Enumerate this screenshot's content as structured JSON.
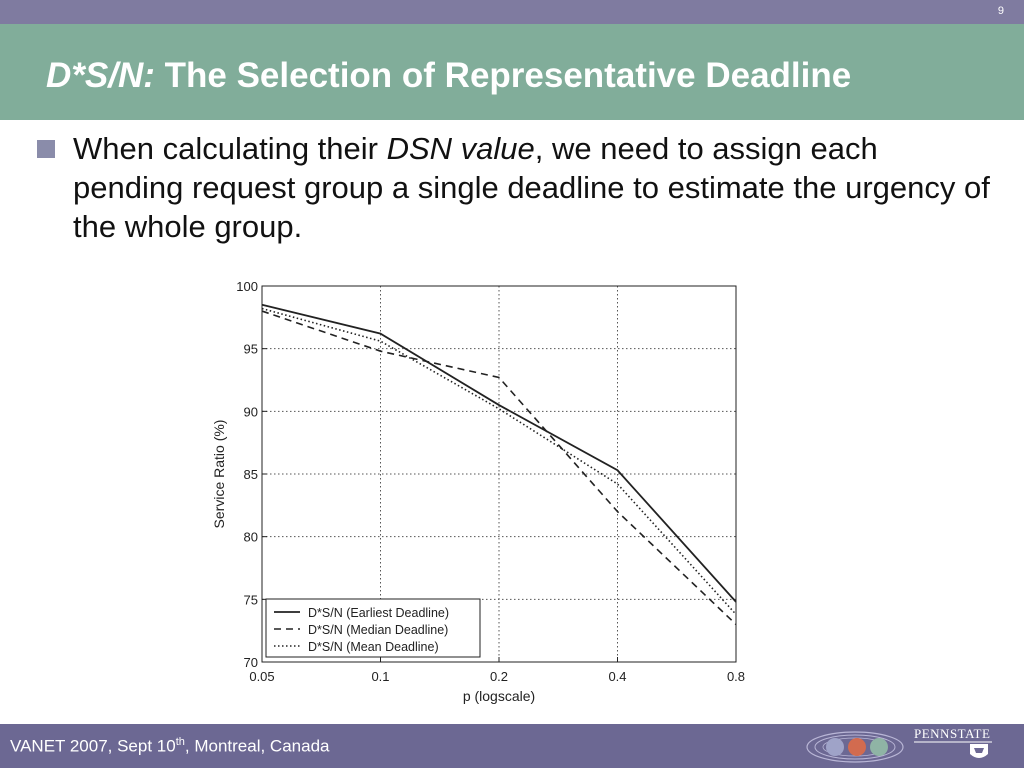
{
  "header": {
    "page_number": "9",
    "title_prefix": "D*S/N:",
    "title_rest": " The Selection of Representative Deadline"
  },
  "bullet": {
    "text_before": "When calculating their ",
    "text_emphasis": "DSN value",
    "text_after": ", we need to assign each pending request group a single deadline to estimate the urgency of the whole group."
  },
  "footer": {
    "event": "VANET 2007, Sept 10",
    "superscript": "th",
    "location": ", Montreal, Canada",
    "logo_text": "PENNSTATE"
  },
  "colors": {
    "topbar": "#7f7ba0",
    "titlebar": "#81ad9a",
    "footer": "#6c6893",
    "bullet": "#8a8caa"
  },
  "chart_data": {
    "type": "line",
    "xscale": "log",
    "x": [
      0.05,
      0.1,
      0.2,
      0.4,
      0.8
    ],
    "x_tick_labels": [
      "0.05",
      "0.1",
      "0.2",
      "0.4",
      "0.8"
    ],
    "y_ticks": [
      70,
      75,
      80,
      85,
      90,
      95,
      100
    ],
    "xlabel": "p (logscale)",
    "ylabel": "Service Ratio (%)",
    "ylim": [
      70,
      100
    ],
    "grid": true,
    "legend_position": "bottom-left",
    "series": [
      {
        "name": "D*S/N (Earliest Deadline)",
        "style": "solid",
        "values": [
          98.5,
          96.2,
          90.5,
          85.3,
          74.8
        ]
      },
      {
        "name": "D*S/N (Median Deadline)",
        "style": "dashed",
        "values": [
          98.0,
          94.8,
          92.7,
          82.0,
          73.0
        ]
      },
      {
        "name": "D*S/N (Mean Deadline)",
        "style": "dotted",
        "values": [
          98.2,
          95.6,
          90.2,
          84.2,
          73.8
        ]
      }
    ]
  }
}
